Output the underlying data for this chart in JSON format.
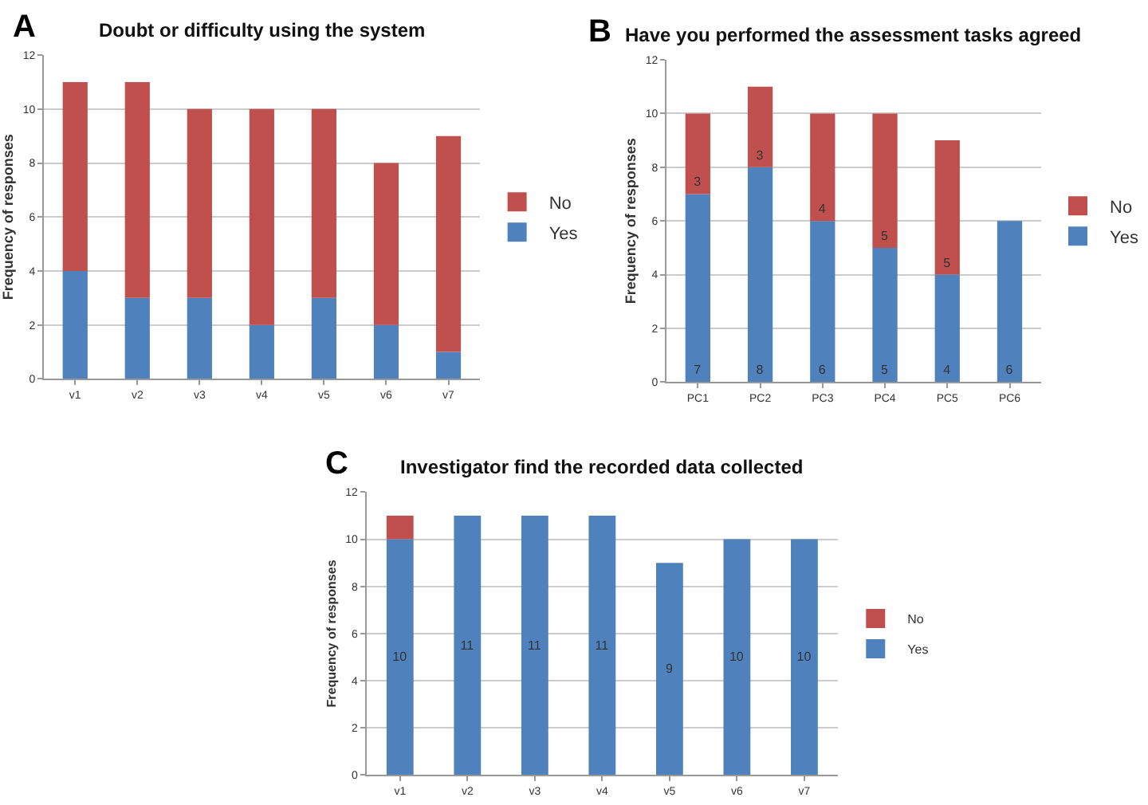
{
  "chart_data": [
    {
      "type": "bar",
      "title": "Doubt or difficulty using the system",
      "ylabel": "Frequency of responses",
      "annotations": [
        "A"
      ],
      "categories": [
        "v1",
        "v2",
        "v3",
        "v4",
        "v5",
        "v6",
        "v7"
      ],
      "stacked": true,
      "series": [
        {
          "name": "Yes",
          "color": "#4f81bd",
          "values": [
            4,
            3,
            3,
            2,
            3,
            2,
            1
          ]
        },
        {
          "name": "No",
          "color": "#c0504d",
          "values": [
            7,
            8,
            7,
            8,
            7,
            6,
            8
          ]
        }
      ],
      "ylim": [
        0,
        12
      ],
      "yticks": [
        0,
        2,
        4,
        6,
        8,
        10,
        12
      ],
      "grid": "y",
      "legend": "right"
    },
    {
      "type": "bar",
      "title": "Have you performed the assessment tasks agreed",
      "ylabel": "Frequency of responses",
      "annotations": [
        "B"
      ],
      "categories": [
        "PC1",
        "PC2",
        "PC3",
        "PC4",
        "PC5",
        "PC6"
      ],
      "stacked": true,
      "series": [
        {
          "name": "Yes",
          "color": "#4f81bd",
          "values": [
            7,
            8,
            6,
            5,
            4,
            6
          ],
          "value_labels": [
            "7",
            "8",
            "6",
            "5",
            "4",
            "6"
          ]
        },
        {
          "name": "No",
          "color": "#c0504d",
          "values": [
            3,
            3,
            4,
            5,
            5,
            0
          ],
          "value_labels": [
            "3",
            "3",
            "4",
            "5",
            "5",
            null
          ]
        }
      ],
      "ylim": [
        0,
        12
      ],
      "yticks": [
        0,
        2,
        4,
        6,
        8,
        10,
        12
      ],
      "grid": "y",
      "legend": "right"
    },
    {
      "type": "bar",
      "title": "Investigator find the recorded data collected",
      "ylabel": "Frequency of responses",
      "annotations": [
        "C"
      ],
      "categories": [
        "v1",
        "v2",
        "v3",
        "v4",
        "v5",
        "v6",
        "v7"
      ],
      "stacked": true,
      "series": [
        {
          "name": "Yes",
          "color": "#4f81bd",
          "values": [
            10,
            11,
            11,
            11,
            9,
            10,
            10
          ],
          "value_labels": [
            "10",
            "11",
            "11",
            "11",
            "9",
            "10",
            "10"
          ]
        },
        {
          "name": "No",
          "color": "#c0504d",
          "values": [
            1,
            0,
            0,
            0,
            0,
            0,
            0
          ]
        }
      ],
      "ylim": [
        0,
        12
      ],
      "yticks": [
        0,
        2,
        4,
        6,
        8,
        10,
        12
      ],
      "grid": "y",
      "legend": "right"
    }
  ]
}
